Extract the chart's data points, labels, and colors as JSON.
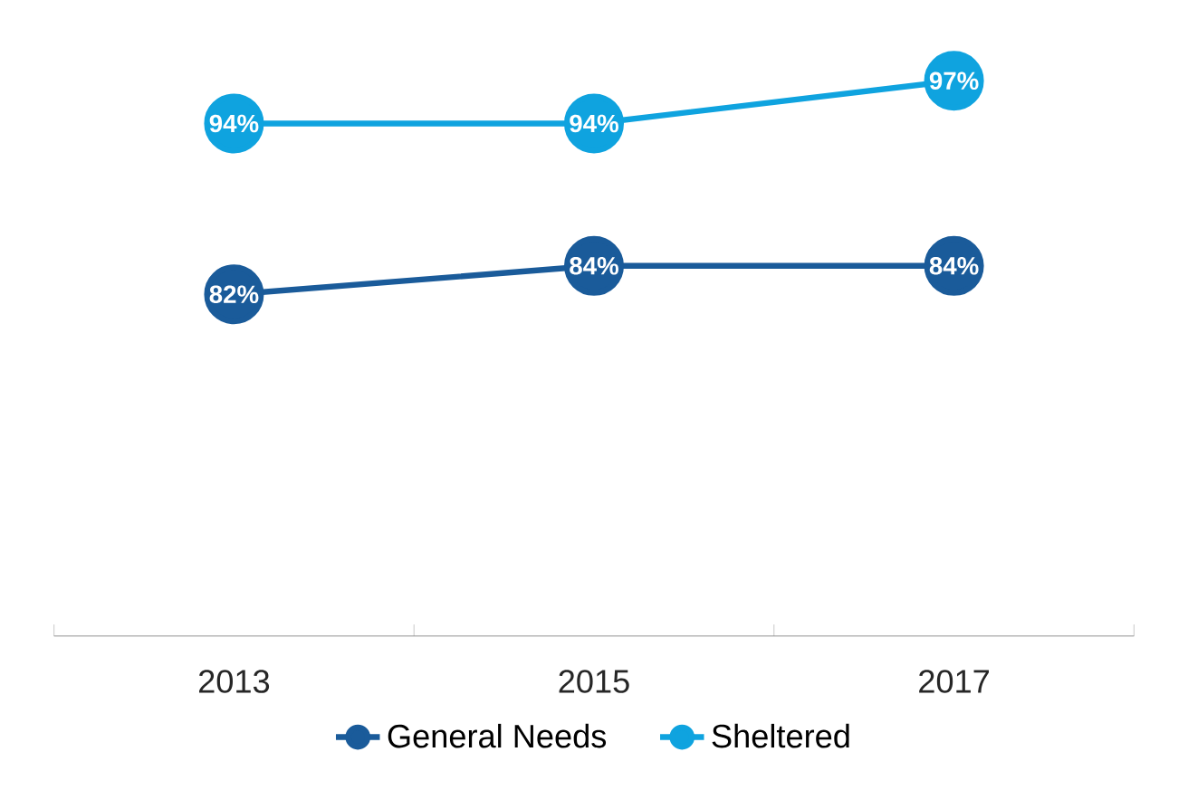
{
  "chart_data": {
    "type": "line",
    "categories": [
      "2013",
      "2015",
      "2017"
    ],
    "legend": "bottom",
    "marker": "circle",
    "line_style": "solid",
    "series": [
      {
        "name": "General Needs",
        "color": "#1a5b9a",
        "values": [
          82,
          84,
          84
        ],
        "value_labels": [
          "82%",
          "84%",
          "84%"
        ]
      },
      {
        "name": "Sheltered",
        "color": "#0fa3df",
        "values": [
          94,
          94,
          97
        ],
        "value_labels": [
          "94%",
          "94%",
          "97%"
        ]
      }
    ]
  }
}
